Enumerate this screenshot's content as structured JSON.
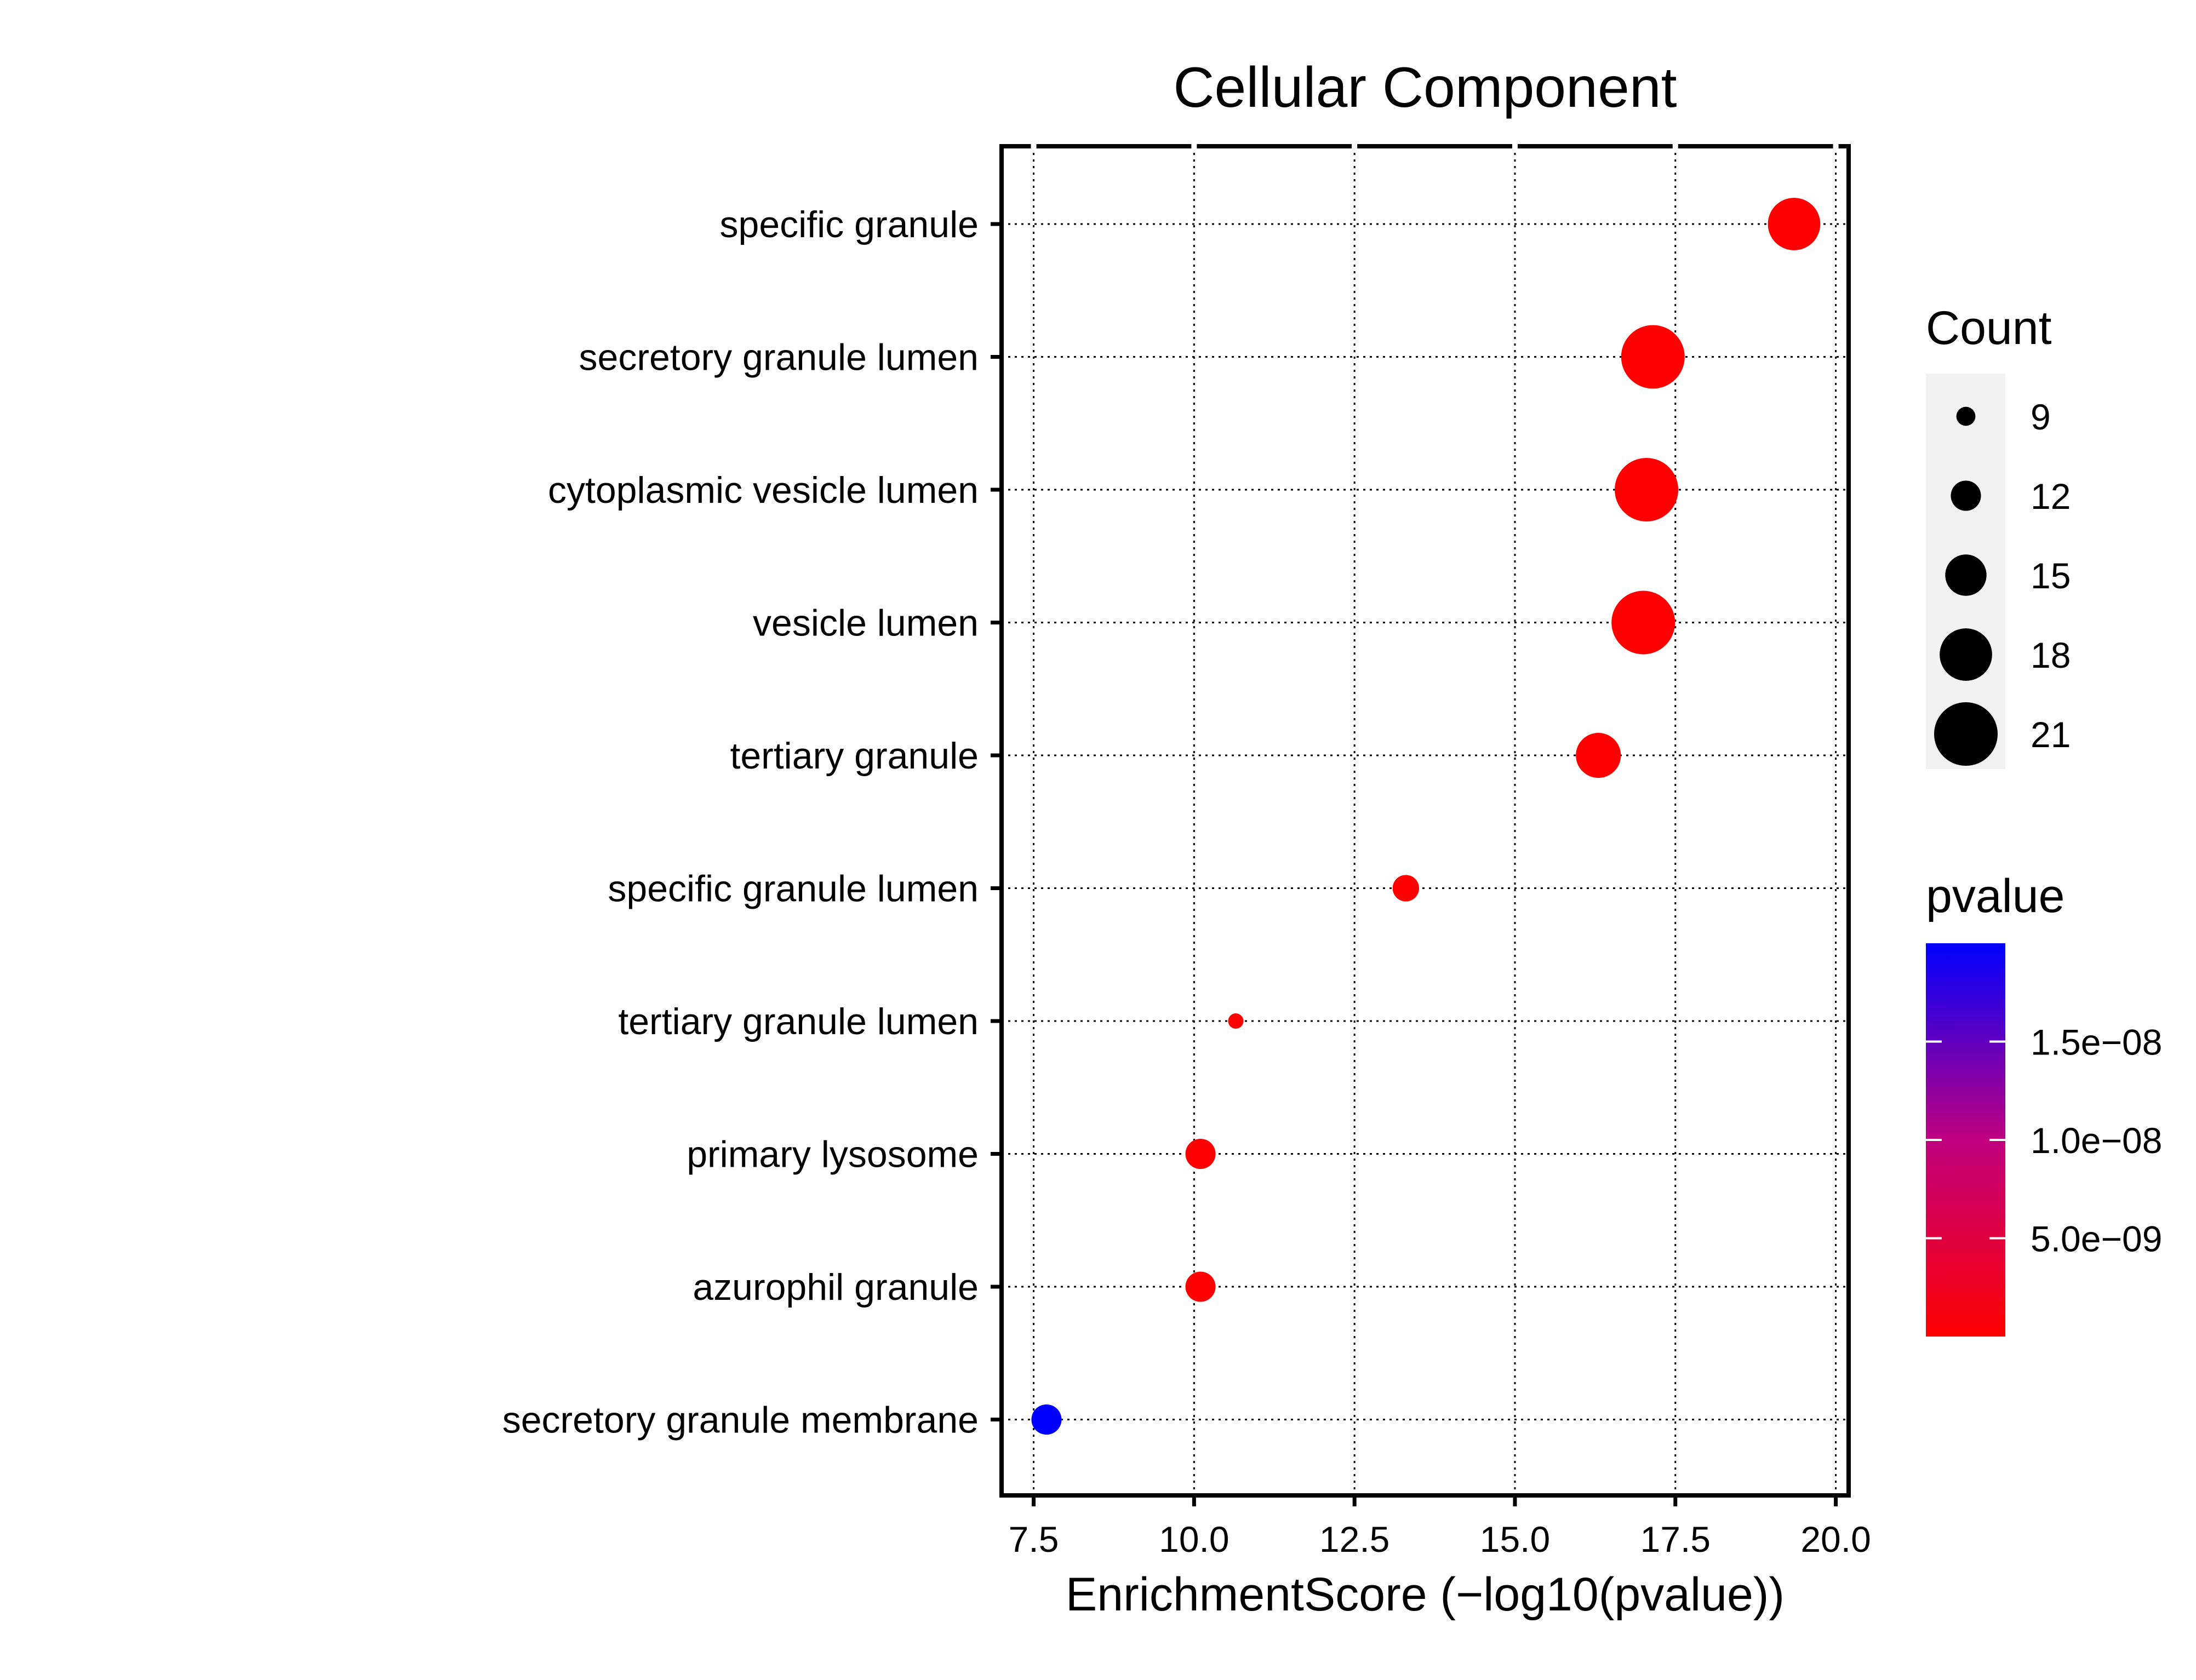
{
  "chart_data": {
    "type": "scatter",
    "title": "Cellular Component",
    "xlabel": "EnrichmentScore (−log10(pvalue))",
    "ylabel": "",
    "xlim": [
      7.0,
      20.2
    ],
    "x_ticks": [
      "7.5",
      "10.0",
      "12.5",
      "15.0",
      "17.5",
      "20.0"
    ],
    "x_tick_values": [
      7.5,
      10.0,
      12.5,
      15.0,
      17.5,
      20.0
    ],
    "grid": "dotted",
    "categories": [
      "specific granule",
      "secretory granule lumen",
      "cytoplasmic vesicle lumen",
      "vesicle lumen",
      "tertiary granule",
      "specific granule lumen",
      "tertiary granule lumen",
      "primary lysosome",
      "azurophil granule",
      "secretory granule membrane"
    ],
    "points": [
      {
        "term": "specific granule",
        "x": 19.35,
        "count": 18,
        "pvalue": 4.5e-20
      },
      {
        "term": "secretory granule lumen",
        "x": 17.15,
        "count": 21,
        "pvalue": 7.1e-18
      },
      {
        "term": "cytoplasmic vesicle lumen",
        "x": 17.05,
        "count": 21,
        "pvalue": 8.9e-18
      },
      {
        "term": "vesicle lumen",
        "x": 17.0,
        "count": 21,
        "pvalue": 1e-17
      },
      {
        "term": "tertiary granule",
        "x": 16.3,
        "count": 16,
        "pvalue": 5e-17
      },
      {
        "term": "specific granule lumen",
        "x": 13.3,
        "count": 11,
        "pvalue": 5e-14
      },
      {
        "term": "tertiary granule lumen",
        "x": 10.65,
        "count": 8,
        "pvalue": 2.2e-11
      },
      {
        "term": "primary lysosome",
        "x": 10.1,
        "count": 12,
        "pvalue": 7.9e-11
      },
      {
        "term": "azurophil granule",
        "x": 10.1,
        "count": 12,
        "pvalue": 7.9e-11
      },
      {
        "term": "secretory granule membrane",
        "x": 7.7,
        "count": 12,
        "pvalue": 2e-08
      }
    ],
    "legend_size": {
      "title": "Count",
      "values": [
        9,
        12,
        15,
        18,
        21
      ],
      "labels": [
        "9",
        "12",
        "15",
        "18",
        "21"
      ]
    },
    "legend_color": {
      "title": "pvalue",
      "min": 0,
      "max": 2e-08,
      "tick_values": [
        5e-09,
        1e-08,
        1.5e-08
      ],
      "tick_labels": [
        "5.0e−09",
        "1.0e−08",
        "1.5e−08"
      ],
      "low_color": "#FF0000",
      "high_color": "#0000FF"
    },
    "legend_position": "right"
  }
}
